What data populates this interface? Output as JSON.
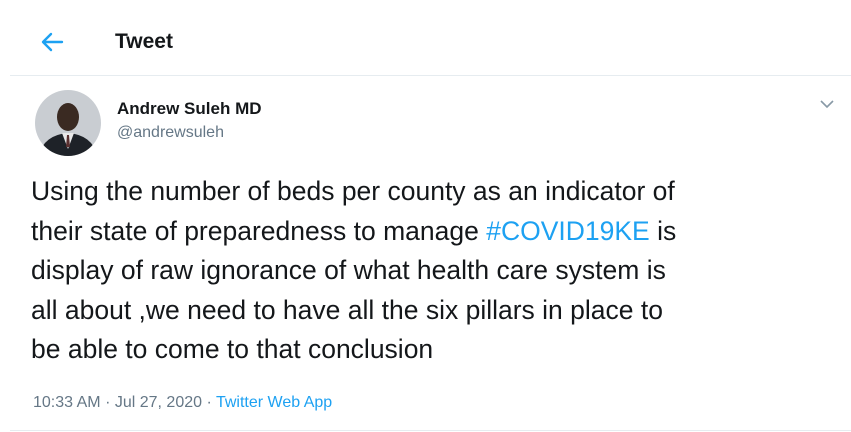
{
  "header": {
    "title": "Tweet"
  },
  "author": {
    "name": "Andrew Suleh MD",
    "handle": "@andrewsuleh"
  },
  "tweet": {
    "lines": [
      "Using the number of beds per county as an indicator of",
      {
        "before": "their state of preparedness to manage ",
        "hashtag": "#COVID19KE",
        "after": " is"
      },
      "display of raw ignorance of what health care system is",
      "all about ,we need to have all the six pillars in place to",
      "be able to come to that conclusion"
    ]
  },
  "meta": {
    "time": "10:33 AM",
    "separator": "·",
    "date": "Jul 27, 2020",
    "source": "Twitter Web App"
  }
}
